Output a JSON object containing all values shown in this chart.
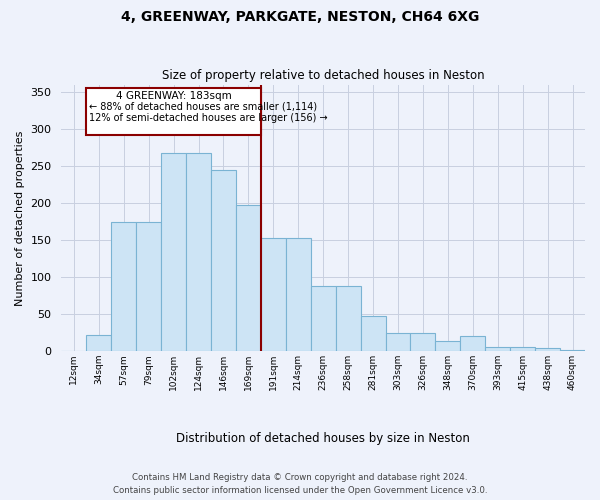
{
  "title1": "4, GREENWAY, PARKGATE, NESTON, CH64 6XG",
  "title2": "Size of property relative to detached houses in Neston",
  "xlabel": "Distribution of detached houses by size in Neston",
  "ylabel": "Number of detached properties",
  "footnote1": "Contains HM Land Registry data © Crown copyright and database right 2024.",
  "footnote2": "Contains public sector information licensed under the Open Government Licence v3.0.",
  "annotation_line1": "4 GREENWAY: 183sqm",
  "annotation_line2": "← 88% of detached houses are smaller (1,114)",
  "annotation_line3": "12% of semi-detached houses are larger (156) →",
  "property_value_bin": 8,
  "bin_labels": [
    "12sqm",
    "34sqm",
    "57sqm",
    "79sqm",
    "102sqm",
    "124sqm",
    "146sqm",
    "169sqm",
    "191sqm",
    "214sqm",
    "236sqm",
    "258sqm",
    "281sqm",
    "303sqm",
    "326sqm",
    "348sqm",
    "370sqm",
    "393sqm",
    "415sqm",
    "438sqm",
    "460sqm"
  ],
  "bar_heights": [
    0,
    22,
    175,
    175,
    268,
    268,
    245,
    198,
    153,
    153,
    88,
    88,
    47,
    25,
    25,
    14,
    20,
    6,
    6,
    4,
    2
  ],
  "bar_color": "#cde4f5",
  "bar_edge_color": "#7ab3d3",
  "vline_color": "#8b0000",
  "box_edge_color": "#8b0000",
  "background_color": "#eef2fb",
  "grid_color": "#c8cfe0",
  "ylim": [
    0,
    360
  ],
  "yticks": [
    0,
    50,
    100,
    150,
    200,
    250,
    300,
    350
  ]
}
